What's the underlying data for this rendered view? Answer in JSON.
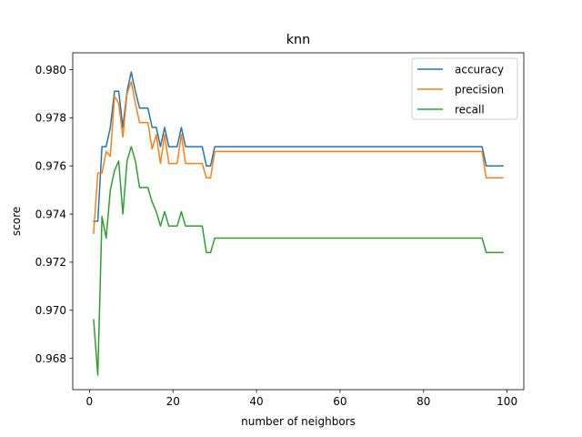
{
  "chart_data": {
    "type": "line",
    "title": "knn",
    "xlabel": "number of neighbors",
    "ylabel": "score",
    "xlim": [
      -4,
      104
    ],
    "ylim": [
      0.9667,
      0.9807
    ],
    "xticks": [
      0,
      20,
      40,
      60,
      80,
      100
    ],
    "yticks": [
      0.968,
      0.97,
      0.972,
      0.974,
      0.976,
      0.978,
      0.98
    ],
    "xtick_labels": [
      "0",
      "20",
      "40",
      "60",
      "80",
      "100"
    ],
    "ytick_labels": [
      "0.968",
      "0.970",
      "0.972",
      "0.974",
      "0.976",
      "0.978",
      "0.980"
    ],
    "grid": false,
    "legend_position": "top-right",
    "series": [
      {
        "name": "accuracy",
        "color": "#1f77b4",
        "points": [
          [
            1,
            0.9737
          ],
          [
            2,
            0.9737
          ],
          [
            3,
            0.9768
          ],
          [
            4,
            0.9768
          ],
          [
            5,
            0.9776
          ],
          [
            6,
            0.9791
          ],
          [
            7,
            0.9791
          ],
          [
            8,
            0.9776
          ],
          [
            9,
            0.9791
          ],
          [
            10,
            0.9799
          ],
          [
            11,
            0.9791
          ],
          [
            12,
            0.9784
          ],
          [
            13,
            0.9784
          ],
          [
            14,
            0.9784
          ],
          [
            15,
            0.9776
          ],
          [
            16,
            0.9776
          ],
          [
            17,
            0.9768
          ],
          [
            18,
            0.9776
          ],
          [
            19,
            0.9768
          ],
          [
            20,
            0.9768
          ],
          [
            21,
            0.9768
          ],
          [
            22,
            0.9776
          ],
          [
            23,
            0.9768
          ],
          [
            24,
            0.9768
          ],
          [
            25,
            0.9768
          ],
          [
            26,
            0.9768
          ],
          [
            27,
            0.9768
          ],
          [
            28,
            0.976
          ],
          [
            29,
            0.976
          ],
          [
            30,
            0.9768
          ],
          [
            94,
            0.9768
          ],
          [
            95,
            0.976
          ],
          [
            99,
            0.976
          ]
        ]
      },
      {
        "name": "precision",
        "color": "#ff7f0e",
        "points": [
          [
            1,
            0.9732
          ],
          [
            2,
            0.9757
          ],
          [
            3,
            0.9757
          ],
          [
            4,
            0.9766
          ],
          [
            5,
            0.9764
          ],
          [
            6,
            0.9789
          ],
          [
            7,
            0.9786
          ],
          [
            8,
            0.9772
          ],
          [
            9,
            0.979
          ],
          [
            10,
            0.9795
          ],
          [
            11,
            0.9786
          ],
          [
            12,
            0.9778
          ],
          [
            13,
            0.9778
          ],
          [
            14,
            0.9778
          ],
          [
            15,
            0.9767
          ],
          [
            16,
            0.9773
          ],
          [
            17,
            0.9761
          ],
          [
            18,
            0.9773
          ],
          [
            19,
            0.9761
          ],
          [
            20,
            0.9761
          ],
          [
            21,
            0.9761
          ],
          [
            22,
            0.9773
          ],
          [
            23,
            0.9761
          ],
          [
            24,
            0.9761
          ],
          [
            25,
            0.9761
          ],
          [
            26,
            0.9761
          ],
          [
            27,
            0.9761
          ],
          [
            28,
            0.9755
          ],
          [
            29,
            0.9755
          ],
          [
            30,
            0.9766
          ],
          [
            94,
            0.9766
          ],
          [
            95,
            0.9755
          ],
          [
            99,
            0.9755
          ]
        ]
      },
      {
        "name": "recall",
        "color": "#2ca02c",
        "points": [
          [
            1,
            0.9696
          ],
          [
            2,
            0.9673
          ],
          [
            3,
            0.9739
          ],
          [
            4,
            0.973
          ],
          [
            5,
            0.975
          ],
          [
            6,
            0.9758
          ],
          [
            7,
            0.9762
          ],
          [
            8,
            0.974
          ],
          [
            9,
            0.9762
          ],
          [
            10,
            0.9768
          ],
          [
            11,
            0.9762
          ],
          [
            12,
            0.9751
          ],
          [
            13,
            0.9751
          ],
          [
            14,
            0.9751
          ],
          [
            15,
            0.9745
          ],
          [
            16,
            0.9741
          ],
          [
            17,
            0.9735
          ],
          [
            18,
            0.9741
          ],
          [
            19,
            0.9735
          ],
          [
            20,
            0.9735
          ],
          [
            21,
            0.9735
          ],
          [
            22,
            0.9741
          ],
          [
            23,
            0.9735
          ],
          [
            24,
            0.9735
          ],
          [
            25,
            0.9735
          ],
          [
            26,
            0.9735
          ],
          [
            27,
            0.9735
          ],
          [
            28,
            0.9724
          ],
          [
            29,
            0.9724
          ],
          [
            30,
            0.973
          ],
          [
            94,
            0.973
          ],
          [
            95,
            0.9724
          ],
          [
            99,
            0.9724
          ]
        ]
      }
    ]
  }
}
